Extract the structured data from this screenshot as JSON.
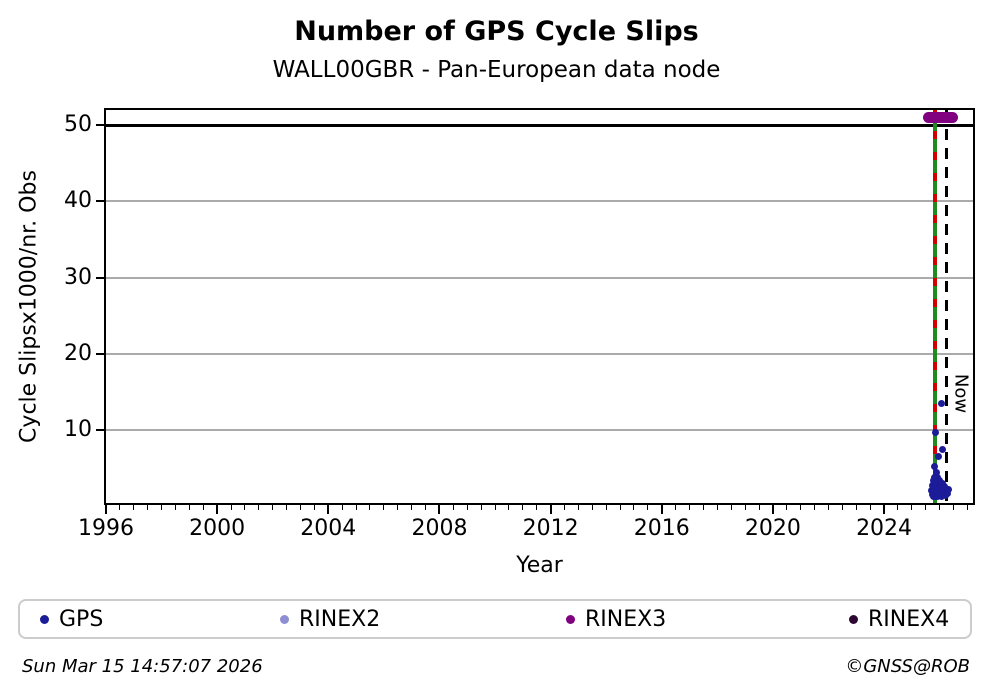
{
  "title": "Number of GPS Cycle Slips",
  "subtitle": "WALL00GBR - Pan-European data node",
  "footer": {
    "timestamp": "Sun Mar 15 14:57:07 2026",
    "credit": "©GNSS@ROB"
  },
  "colors": {
    "gps": "#1c1c99",
    "rinex2": "#8e8ed4",
    "rinex3": "#800080",
    "rinex4": "#2e0833",
    "event_line_green": "#1f8b1f",
    "event_line_red_dash": "#d40000",
    "now_line": "#000000",
    "gridline": "#aaaaaa",
    "threshold_line": "#000000",
    "legend_border": "#cccccc"
  },
  "chart_data": {
    "type": "scatter",
    "title": "Number of GPS Cycle Slips",
    "subtitle": "WALL00GBR - Pan-European data node",
    "xlabel": "Year",
    "ylabel": "Cycle Slipsx1000/nr. Obs",
    "xlim": [
      1996,
      2027.2
    ],
    "ylim": [
      0.4,
      52.0
    ],
    "xticks_major": [
      1996,
      2000,
      2004,
      2008,
      2012,
      2016,
      2020,
      2024
    ],
    "xtick_minor_step": 0.5,
    "yticks": [
      10,
      20,
      30,
      40,
      50
    ],
    "grid": "horizontal-gray",
    "threshold_hline_y": 50,
    "vlines": [
      {
        "x": 2025.83,
        "style": "green-with-red-dashes",
        "label": ""
      },
      {
        "x": 2026.25,
        "style": "black-dashed",
        "label": "Now"
      }
    ],
    "legend": {
      "position": "bottom",
      "entries": [
        "GPS",
        "RINEX2",
        "RINEX3",
        "RINEX4"
      ]
    },
    "series": [
      {
        "name": "GPS",
        "color": "#1c1c99",
        "marker_radius": 3.5,
        "points": [
          [
            2026.06,
            13.4
          ],
          [
            2025.84,
            9.6
          ],
          [
            2026.09,
            7.4
          ],
          [
            2025.95,
            6.5
          ],
          [
            2025.8,
            5.2
          ],
          [
            2025.87,
            4.4
          ],
          [
            2025.72,
            2.1
          ],
          [
            2025.74,
            1.5
          ],
          [
            2025.76,
            2.7
          ],
          [
            2025.78,
            3.3
          ],
          [
            2025.78,
            1.2
          ],
          [
            2025.8,
            2.4
          ],
          [
            2025.82,
            3.8
          ],
          [
            2025.82,
            1.8
          ],
          [
            2025.84,
            2.9
          ],
          [
            2025.86,
            1.3
          ],
          [
            2025.86,
            3.5
          ],
          [
            2025.88,
            2.2
          ],
          [
            2025.9,
            1.6
          ],
          [
            2025.9,
            3.1
          ],
          [
            2025.92,
            2.6
          ],
          [
            2025.94,
            1.2
          ],
          [
            2025.94,
            3.7
          ],
          [
            2025.96,
            2.0
          ],
          [
            2025.98,
            2.8
          ],
          [
            2026.0,
            1.5
          ],
          [
            2026.0,
            3.3
          ],
          [
            2026.02,
            2.3
          ],
          [
            2026.04,
            1.8
          ],
          [
            2026.04,
            3.0
          ],
          [
            2026.06,
            2.5
          ],
          [
            2026.08,
            1.3
          ],
          [
            2026.1,
            2.9
          ],
          [
            2026.12,
            2.0
          ],
          [
            2026.14,
            1.6
          ],
          [
            2026.16,
            2.6
          ],
          [
            2026.18,
            1.9
          ],
          [
            2026.2,
            2.3
          ],
          [
            2026.22,
            1.4
          ],
          [
            2026.25,
            2.1
          ],
          [
            2026.28,
            1.7
          ],
          [
            2026.32,
            2.2
          ]
        ]
      },
      {
        "name": "RINEX2",
        "color": "#8e8ed4",
        "marker_radius": 4.5,
        "points": []
      },
      {
        "name": "RINEX3",
        "color": "#800080",
        "marker_radius": 5.5,
        "points": [
          [
            2025.6,
            51
          ],
          [
            2025.65,
            51
          ],
          [
            2025.7,
            51
          ],
          [
            2025.75,
            51
          ],
          [
            2025.8,
            51
          ],
          [
            2025.85,
            51
          ],
          [
            2025.9,
            51
          ],
          [
            2025.95,
            51
          ],
          [
            2026.0,
            51
          ],
          [
            2026.05,
            51
          ],
          [
            2026.1,
            51
          ],
          [
            2026.15,
            51
          ],
          [
            2026.2,
            51
          ],
          [
            2026.25,
            51
          ],
          [
            2026.3,
            51
          ],
          [
            2026.35,
            51
          ],
          [
            2026.4,
            51
          ],
          [
            2026.45,
            51
          ]
        ]
      },
      {
        "name": "RINEX4",
        "color": "#2e0833",
        "marker_radius": 4.5,
        "points": []
      }
    ]
  }
}
